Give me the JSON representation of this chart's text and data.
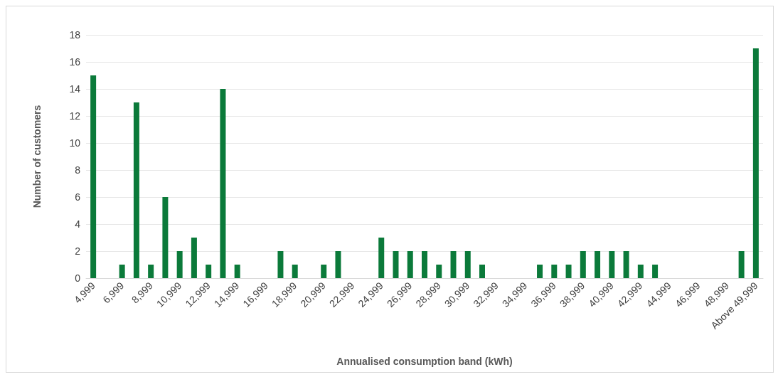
{
  "chart_data": {
    "type": "bar",
    "xlabel": "Annualised consumption band (kWh)",
    "ylabel": "Number of customers",
    "categories": [
      "4,999",
      null,
      "6,999",
      null,
      "8,999",
      null,
      "10,999",
      null,
      "12,999",
      null,
      "14,999",
      null,
      "16,999",
      null,
      "18,999",
      null,
      "20,999",
      null,
      "22,999",
      null,
      "24,999",
      null,
      "26,999",
      null,
      "28,999",
      null,
      "30,999",
      null,
      "32,999",
      null,
      "34,999",
      null,
      "36,999",
      null,
      "38,999",
      null,
      "40,999",
      null,
      "42,999",
      null,
      "44,999",
      null,
      "46,999",
      null,
      "48,999",
      null,
      "Above 49,999"
    ],
    "values": [
      15,
      0,
      1,
      13,
      1,
      6,
      2,
      3,
      1,
      14,
      1,
      0,
      0,
      2,
      1,
      0,
      1,
      2,
      0,
      0,
      3,
      2,
      2,
      2,
      1,
      2,
      2,
      1,
      0,
      0,
      0,
      1,
      1,
      1,
      2,
      2,
      2,
      2,
      1,
      1,
      0,
      0,
      0,
      0,
      0,
      2,
      17
    ],
    "color": "#0b7a3a",
    "ylim": [
      0,
      18
    ],
    "yticks": [
      0,
      2,
      4,
      6,
      8,
      10,
      12,
      14,
      16,
      18
    ],
    "grid": "y"
  }
}
